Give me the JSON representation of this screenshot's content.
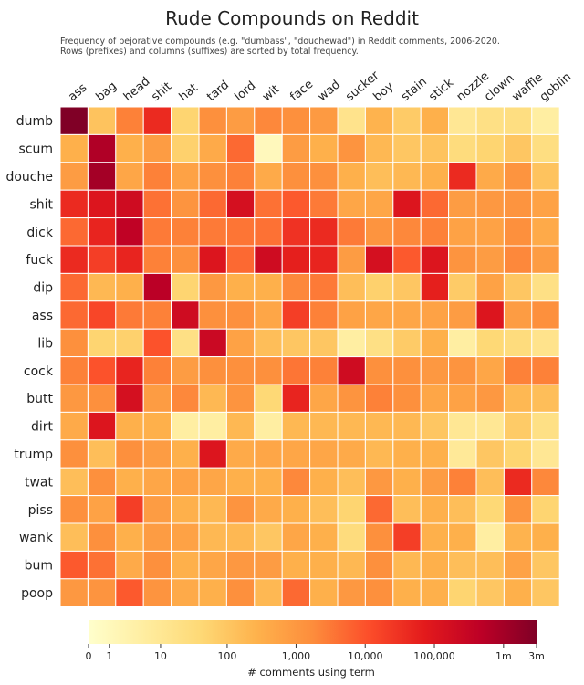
{
  "chart_data": {
    "type": "heatmap",
    "title": "Rude Compounds on Reddit",
    "subtitle": [
      "Frequency of pejorative compounds (e.g. \"dumbass\", \"douchewad\") in Reddit comments, 2006-2020.",
      "Rows (prefixes) and columns (suffixes) are sorted by total frequency."
    ],
    "columns": [
      "ass",
      "bag",
      "head",
      "shit",
      "hat",
      "tard",
      "lord",
      "wit",
      "face",
      "wad",
      "sucker",
      "boy",
      "stain",
      "stick",
      "nozzle",
      "clown",
      "waffle",
      "goblin"
    ],
    "rows": [
      "dumb",
      "scum",
      "douche",
      "shit",
      "dick",
      "fuck",
      "dip",
      "ass",
      "lib",
      "cock",
      "butt",
      "dirt",
      "trump",
      "twat",
      "piss",
      "wank",
      "bum",
      "poop"
    ],
    "value_scale": "log",
    "values": [
      [
        3000000,
        120,
        2500,
        40000,
        50,
        1500,
        800,
        2000,
        1500,
        900,
        15,
        250,
        80,
        300,
        10,
        20,
        25,
        5
      ],
      [
        300,
        700000,
        300,
        800,
        60,
        400,
        5000,
        1,
        800,
        300,
        1200,
        200,
        100,
        120,
        30,
        50,
        100,
        25
      ],
      [
        800,
        1000000,
        500,
        2500,
        600,
        1500,
        2500,
        400,
        1500,
        1500,
        300,
        150,
        200,
        300,
        40000,
        400,
        1200,
        120
      ],
      [
        40000,
        100000,
        200000,
        4000,
        1200,
        5000,
        150000,
        4000,
        8000,
        3000,
        500,
        500,
        100000,
        5000,
        800,
        1000,
        1200,
        600
      ],
      [
        5000,
        50000,
        400000,
        3000,
        2500,
        3000,
        3500,
        4000,
        30000,
        40000,
        3000,
        1200,
        2000,
        2500,
        600,
        600,
        1500,
        400
      ],
      [
        40000,
        20000,
        50000,
        2500,
        1500,
        100000,
        5000,
        200000,
        60000,
        50000,
        800,
        150000,
        8000,
        100000,
        1200,
        800,
        2000,
        800
      ],
      [
        5000,
        200,
        300,
        500000,
        50,
        1000,
        300,
        300,
        2000,
        3000,
        150,
        60,
        100,
        60000,
        80,
        600,
        100,
        20
      ],
      [
        5000,
        15000,
        3000,
        2500,
        200000,
        1500,
        1500,
        500,
        20000,
        2500,
        600,
        500,
        500,
        600,
        800,
        100000,
        800,
        1500
      ],
      [
        1500,
        50,
        60,
        10000,
        20,
        250000,
        600,
        150,
        100,
        100,
        5,
        20,
        80,
        300,
        5,
        40,
        30,
        15
      ],
      [
        2500,
        10000,
        50000,
        2500,
        800,
        1500,
        1500,
        1500,
        3500,
        2500,
        200000,
        1500,
        1500,
        1000,
        1200,
        500,
        2500,
        2500
      ],
      [
        1000,
        1500,
        150000,
        800,
        2000,
        200,
        1200,
        40,
        50000,
        500,
        1200,
        2500,
        1500,
        500,
        600,
        1000,
        200,
        150
      ],
      [
        400,
        100000,
        300,
        300,
        5,
        5,
        200,
        5,
        200,
        200,
        200,
        200,
        200,
        100,
        10,
        10,
        80,
        20
      ],
      [
        1500,
        150,
        1500,
        800,
        300,
        100000,
        400,
        500,
        500,
        500,
        400,
        200,
        300,
        300,
        8,
        100,
        50,
        10
      ],
      [
        150,
        1500,
        300,
        500,
        600,
        500,
        300,
        300,
        2000,
        300,
        150,
        1000,
        300,
        800,
        2500,
        150,
        40000,
        2000
      ],
      [
        1500,
        600,
        20000,
        800,
        300,
        200,
        1200,
        400,
        300,
        150,
        50,
        5000,
        150,
        300,
        150,
        40,
        1200,
        50
      ],
      [
        150,
        1500,
        300,
        800,
        600,
        200,
        200,
        100,
        500,
        300,
        30,
        1500,
        20000,
        300,
        300,
        5,
        250,
        300
      ],
      [
        8000,
        4000,
        400,
        1500,
        300,
        500,
        1000,
        800,
        300,
        300,
        200,
        1500,
        200,
        300,
        150,
        150,
        600,
        100
      ],
      [
        1000,
        1200,
        8000,
        1200,
        400,
        300,
        1500,
        200,
        5000,
        300,
        1000,
        1500,
        300,
        300,
        50,
        100,
        300,
        100
      ]
    ],
    "colorbar": {
      "label": "# comments using term",
      "ticks": [
        {
          "label": "0",
          "value": 0
        },
        {
          "label": "1",
          "value": 1
        },
        {
          "label": "10",
          "value": 10
        },
        {
          "label": "100",
          "value": 100
        },
        {
          "label": "1,000",
          "value": 1000
        },
        {
          "label": "10,000",
          "value": 10000
        },
        {
          "label": "100,000",
          "value": 100000
        },
        {
          "label": "1m",
          "value": 1000000
        },
        {
          "label": "3m",
          "value": 3000000
        }
      ],
      "colors": [
        "#ffffcc",
        "#ffeda0",
        "#fed976",
        "#feb24c",
        "#fd8d3c",
        "#fc4e2a",
        "#e31a1c",
        "#bd0026",
        "#800026"
      ]
    }
  }
}
